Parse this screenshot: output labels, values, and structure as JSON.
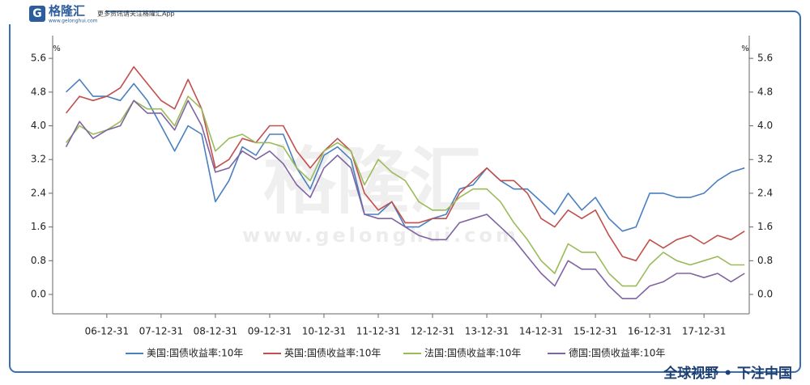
{
  "header": {
    "logo": "格隆汇",
    "logo_url": "www.gelonghui.com",
    "tagline": "更多资讯请关注格隆汇App"
  },
  "watermark": {
    "text": "格隆汇",
    "url": "www.gelonghui.com"
  },
  "footer": "全球视野 • 下注中国",
  "chart_data": {
    "type": "line",
    "y_unit": "%",
    "y2_unit": "%",
    "x": [
      "06-03-31",
      "06-06-30",
      "06-09-30",
      "06-12-31",
      "07-03-31",
      "07-06-30",
      "07-09-30",
      "07-12-31",
      "08-03-31",
      "08-06-30",
      "08-09-30",
      "08-12-31",
      "09-03-31",
      "09-06-30",
      "09-09-30",
      "09-12-31",
      "10-03-31",
      "10-06-30",
      "10-09-30",
      "10-12-31",
      "11-03-31",
      "11-06-30",
      "11-09-30",
      "11-12-31",
      "12-03-31",
      "12-06-30",
      "12-09-30",
      "12-12-31",
      "13-03-31",
      "13-06-30",
      "13-09-30",
      "13-12-31",
      "14-03-31",
      "14-06-30",
      "14-09-30",
      "14-12-31",
      "15-03-31",
      "15-06-30",
      "15-09-30",
      "15-12-31",
      "16-03-31",
      "16-06-30",
      "16-09-30",
      "16-12-31",
      "17-03-31",
      "17-06-30",
      "17-09-30",
      "17-12-31",
      "18-03-31",
      "18-06-30",
      "18-09-30"
    ],
    "xlim": [
      "06-01-01",
      "18-10-31"
    ],
    "xticks": [
      "06-12-31",
      "07-12-31",
      "08-12-31",
      "09-12-31",
      "10-12-31",
      "11-12-31",
      "12-12-31",
      "13-12-31",
      "14-12-31",
      "15-12-31",
      "16-12-31",
      "17-12-31"
    ],
    "ylim": [
      -0.46,
      6.14
    ],
    "yticks": [
      {
        "value": 0,
        "label": "0.0"
      },
      0.8,
      1.6,
      2.4,
      3.2,
      {
        "value": 4,
        "label": "4.0"
      },
      4.8,
      5.6
    ],
    "y2lim": [
      -0.46,
      6.14
    ],
    "y2ticks": [
      {
        "value": 0,
        "label": "0.0"
      },
      0.8,
      1.6,
      2.4,
      3.2,
      {
        "value": 4,
        "label": "4.0"
      },
      4.8,
      5.6
    ],
    "series": [
      {
        "name": "美国:国债收益率:10年",
        "color": "#4a7fc1",
        "values": [
          4.8,
          5.1,
          4.7,
          4.7,
          4.6,
          5.0,
          4.6,
          4.0,
          3.4,
          4.0,
          3.8,
          2.2,
          2.7,
          3.5,
          3.3,
          3.8,
          3.8,
          3.0,
          2.5,
          3.3,
          3.5,
          3.2,
          1.9,
          1.9,
          2.2,
          1.6,
          1.6,
          1.8,
          1.9,
          2.5,
          2.6,
          3.0,
          2.7,
          2.5,
          2.5,
          2.2,
          1.9,
          2.4,
          2.0,
          2.3,
          1.8,
          1.5,
          1.6,
          2.4,
          2.4,
          2.3,
          2.3,
          2.4,
          2.7,
          2.9,
          3.0
        ]
      },
      {
        "name": "英国:国债收益率:10年",
        "color": "#c0504d",
        "values": [
          4.3,
          4.7,
          4.6,
          4.7,
          4.9,
          5.4,
          5.0,
          4.6,
          4.4,
          5.1,
          4.4,
          3.0,
          3.2,
          3.7,
          3.6,
          4.0,
          4.0,
          3.4,
          3.0,
          3.4,
          3.7,
          3.4,
          2.4,
          2.0,
          2.2,
          1.7,
          1.7,
          1.8,
          1.8,
          2.4,
          2.7,
          3.0,
          2.7,
          2.7,
          2.4,
          1.8,
          1.6,
          2.0,
          1.8,
          2.0,
          1.4,
          0.9,
          0.8,
          1.3,
          1.1,
          1.3,
          1.4,
          1.2,
          1.4,
          1.3,
          1.5
        ]
      },
      {
        "name": "法国:国债收益率:10年",
        "color": "#9bbb59",
        "values": [
          3.6,
          4.0,
          3.8,
          3.9,
          4.1,
          4.6,
          4.4,
          4.4,
          4.0,
          4.7,
          4.4,
          3.4,
          3.7,
          3.8,
          3.6,
          3.6,
          3.5,
          3.0,
          2.7,
          3.4,
          3.6,
          3.4,
          2.6,
          3.2,
          2.9,
          2.7,
          2.2,
          2.0,
          2.0,
          2.3,
          2.5,
          2.5,
          2.2,
          1.7,
          1.3,
          0.8,
          0.5,
          1.2,
          1.0,
          1.0,
          0.5,
          0.2,
          0.2,
          0.7,
          1.0,
          0.8,
          0.7,
          0.8,
          0.9,
          0.7,
          0.7
        ]
      },
      {
        "name": "德国:国债收益率:10年",
        "color": "#8064a2",
        "values": [
          3.5,
          4.1,
          3.7,
          3.9,
          4.0,
          4.6,
          4.3,
          4.3,
          3.9,
          4.6,
          4.0,
          2.9,
          3.0,
          3.4,
          3.2,
          3.4,
          3.1,
          2.6,
          2.3,
          3.0,
          3.3,
          3.0,
          1.9,
          1.8,
          1.8,
          1.6,
          1.4,
          1.3,
          1.3,
          1.7,
          1.8,
          1.9,
          1.6,
          1.3,
          0.9,
          0.5,
          0.2,
          0.8,
          0.6,
          0.6,
          0.2,
          -0.1,
          -0.1,
          0.2,
          0.3,
          0.5,
          0.5,
          0.4,
          0.5,
          0.3,
          0.5
        ]
      }
    ]
  }
}
